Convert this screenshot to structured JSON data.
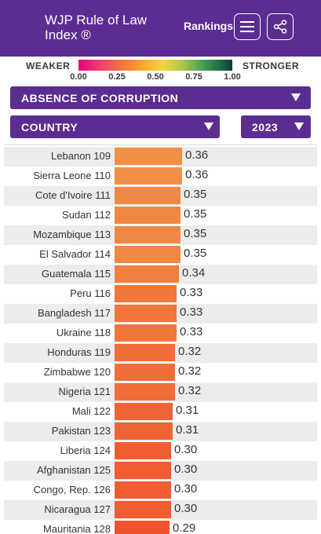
{
  "header": {
    "title": "WJP Rule of Law Index ®",
    "rankings_label": "Rankings",
    "menu_icon": "hamburger-menu-icon",
    "share_icon": "share-icon",
    "background": "#5b2d91"
  },
  "scale": {
    "weaker_label": "WEAKER",
    "stronger_label": "STRONGER",
    "ticks": [
      "0.00",
      "0.25",
      "0.50",
      "0.75",
      "1.00"
    ]
  },
  "filters": {
    "indicator": "ABSENCE OF CORRUPTION",
    "level": "COUNTRY",
    "year": "2023"
  },
  "rows": [
    {
      "country": "Lebanon",
      "rank": "109",
      "score": "0.36"
    },
    {
      "country": "Sierra Leone",
      "rank": "110",
      "score": "0.36"
    },
    {
      "country": "Cote d'Ivoire",
      "rank": "111",
      "score": "0.35"
    },
    {
      "country": "Sudan",
      "rank": "112",
      "score": "0.35"
    },
    {
      "country": "Mozambique",
      "rank": "113",
      "score": "0.35"
    },
    {
      "country": "El Salvador",
      "rank": "114",
      "score": "0.35"
    },
    {
      "country": "Guatemala",
      "rank": "115",
      "score": "0.34"
    },
    {
      "country": "Peru",
      "rank": "116",
      "score": "0.33"
    },
    {
      "country": "Bangladesh",
      "rank": "117",
      "score": "0.33"
    },
    {
      "country": "Ukraine",
      "rank": "118",
      "score": "0.33"
    },
    {
      "country": "Honduras",
      "rank": "119",
      "score": "0.32"
    },
    {
      "country": "Zimbabwe",
      "rank": "120",
      "score": "0.32"
    },
    {
      "country": "Nigeria",
      "rank": "121",
      "score": "0.32"
    },
    {
      "country": "Mali",
      "rank": "122",
      "score": "0.31"
    },
    {
      "country": "Pakistan",
      "rank": "123",
      "score": "0.31"
    },
    {
      "country": "Liberia",
      "rank": "124",
      "score": "0.30"
    },
    {
      "country": "Afghanistan",
      "rank": "125",
      "score": "0.30"
    },
    {
      "country": "Congo, Rep.",
      "rank": "126",
      "score": "0.30"
    },
    {
      "country": "Nicaragua",
      "rank": "127",
      "score": "0.30"
    },
    {
      "country": "Mauritania",
      "rank": "128",
      "score": "0.29"
    }
  ]
}
